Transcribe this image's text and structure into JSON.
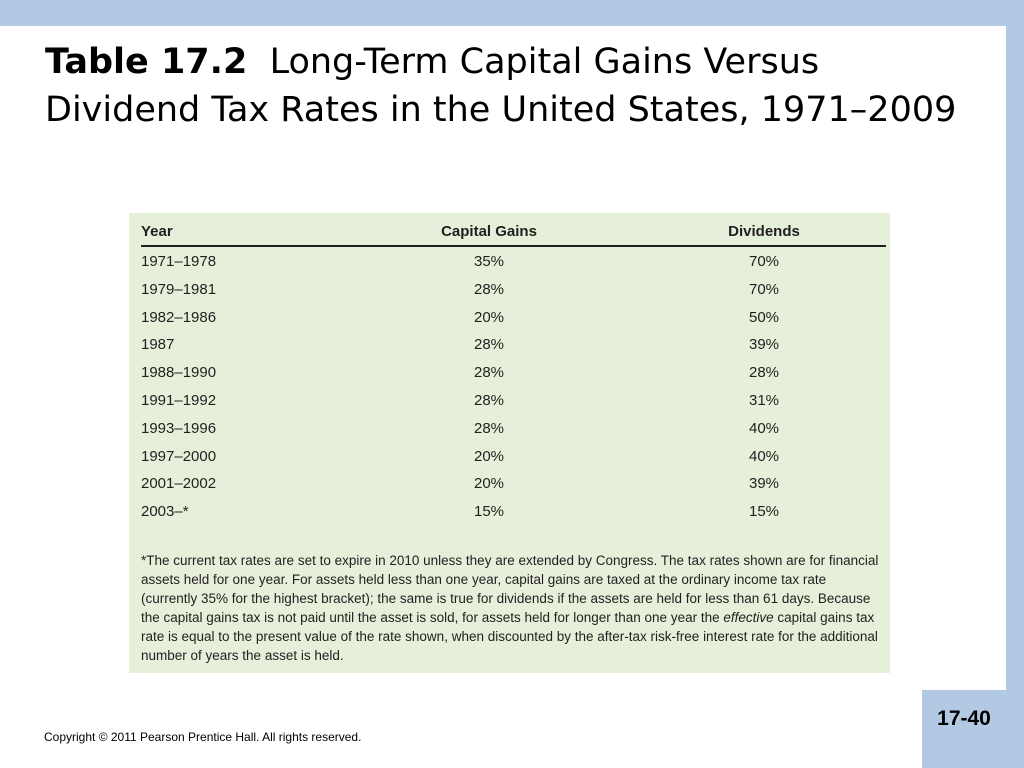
{
  "slide": {
    "title_number": "Table 17.2",
    "title_text": "Long-Term Capital Gains Versus Dividend Tax Rates in the United States, 1971–2009",
    "page_number": "17-40",
    "copyright": "Copyright © 2011 Pearson Prentice Hall. All rights reserved."
  },
  "table": {
    "headers": {
      "year": "Year",
      "capital_gains": "Capital Gains",
      "dividends": "Dividends"
    },
    "rows": [
      {
        "year": "1971–1978",
        "capital_gains": "35%",
        "dividends": "70%"
      },
      {
        "year": "1979–1981",
        "capital_gains": "28%",
        "dividends": "70%"
      },
      {
        "year": "1982–1986",
        "capital_gains": "20%",
        "dividends": "50%"
      },
      {
        "year": "1987",
        "capital_gains": "28%",
        "dividends": "39%"
      },
      {
        "year": "1988–1990",
        "capital_gains": "28%",
        "dividends": "28%"
      },
      {
        "year": "1991–1992",
        "capital_gains": "28%",
        "dividends": "31%"
      },
      {
        "year": "1993–1996",
        "capital_gains": "28%",
        "dividends": "40%"
      },
      {
        "year": "1997–2000",
        "capital_gains": "20%",
        "dividends": "40%"
      },
      {
        "year": "2001–2002",
        "capital_gains": "20%",
        "dividends": "39%"
      },
      {
        "year": "2003–*",
        "capital_gains": "15%",
        "dividends": "15%"
      }
    ],
    "footnote": {
      "before": "*The current tax rates are set to expire in 2010 unless they are extended by Congress. The tax rates shown are for financial assets held for one year. For assets held less than one year, capital gains are taxed at the ordinary income tax rate (currently 35% for the highest bracket); the same is true for dividends if the assets are held for less than 61 days. Because the capital gains tax is not paid until the asset is sold, for assets held for longer than one year the ",
      "emphasis": "effective",
      "after": " capital gains tax rate is equal to the present value of the rate shown, when discounted by the after-tax risk-free interest rate for the additional number of years the asset is held."
    }
  },
  "colors": {
    "accent_bar": "#b3c8e2",
    "table_background": "#e5efd9"
  }
}
